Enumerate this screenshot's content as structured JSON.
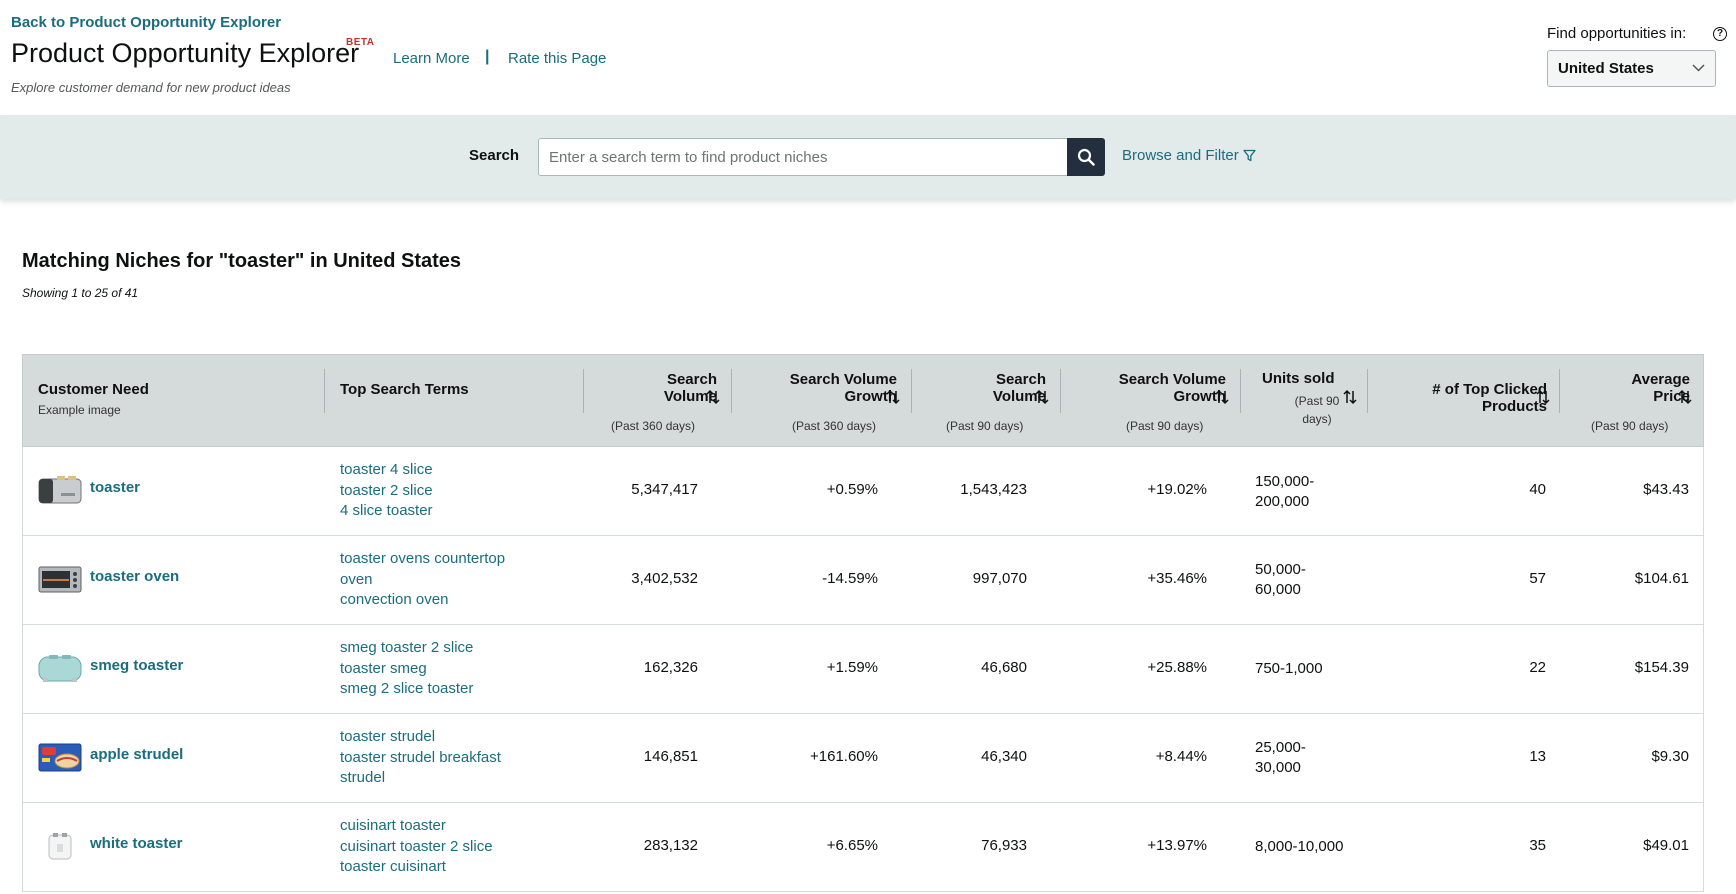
{
  "header": {
    "back_link": "Back to Product Opportunity Explorer",
    "title": "Product Opportunity Explorer",
    "beta_badge": "BETA",
    "learn_more": "Learn More",
    "separator": "|",
    "rate_page": "Rate this Page",
    "subtitle": "Explore customer demand for new product ideas",
    "find_label": "Find opportunities in:",
    "help_glyph": "?",
    "country": "United States"
  },
  "search": {
    "label": "Search",
    "placeholder": "Enter a search term to find product niches",
    "value": "",
    "browse_label": "Browse and Filter"
  },
  "results": {
    "title": "Matching Niches for \"toaster\" in United States",
    "count": "Showing 1 to 25 of 41"
  },
  "table": {
    "headers": {
      "customer_need": "Customer Need",
      "customer_need_sub": "Example image",
      "top_search_terms": "Top Search Terms",
      "sv360_l1": "Search",
      "sv360_l2": "Volume",
      "sv360_sub": "(Past 360 days)",
      "svg360_l1": "Search Volume",
      "svg360_l2": "Growth",
      "svg360_sub": "(Past 360 days)",
      "sv90_l1": "Search",
      "sv90_l2": "Volume",
      "sv90_sub": "(Past 90 days)",
      "svg90_l1": "Search Volume",
      "svg90_l2": "Growth",
      "svg90_sub": "(Past 90 days)",
      "units_l1": "Units sold",
      "units_sub1": "(Past 90",
      "units_sub2": "days)",
      "clicked_l1": "# of Top Clicked",
      "clicked_l2": "Products",
      "price_l1": "Average",
      "price_l2": "Price",
      "price_sub": "(Past 90 days)"
    },
    "rows": [
      {
        "need": "toaster",
        "image_icon": "toaster-image",
        "terms": [
          "toaster 4 slice",
          "toaster 2 slice",
          "4 slice toaster"
        ],
        "sv360": "5,347,417",
        "svg360": "+0.59%",
        "sv90": "1,543,423",
        "svg90": "+19.02%",
        "units_l1": "150,000-",
        "units_l2": "200,000",
        "clicked": "40",
        "price": "$43.43"
      },
      {
        "need": "toaster oven",
        "image_icon": "toaster-oven-image",
        "terms": [
          "toaster ovens countertop",
          "oven",
          "convection oven"
        ],
        "sv360": "3,402,532",
        "svg360": "-14.59%",
        "sv90": "997,070",
        "svg90": "+35.46%",
        "units_l1": "50,000-",
        "units_l2": "60,000",
        "clicked": "57",
        "price": "$104.61"
      },
      {
        "need": "smeg toaster",
        "image_icon": "smeg-toaster-image",
        "terms": [
          "smeg toaster 2 slice",
          "toaster smeg",
          "smeg 2 slice toaster"
        ],
        "sv360": "162,326",
        "svg360": "+1.59%",
        "sv90": "46,680",
        "svg90": "+25.88%",
        "units_l1": "750-1,000",
        "units_l2": "",
        "clicked": "22",
        "price": "$154.39"
      },
      {
        "need": "apple strudel",
        "image_icon": "apple-strudel-box-image",
        "terms": [
          "toaster strudel",
          "toaster strudel breakfast",
          "strudel"
        ],
        "sv360": "146,851",
        "svg360": "+161.60%",
        "sv90": "46,340",
        "svg90": "+8.44%",
        "units_l1": "25,000-",
        "units_l2": "30,000",
        "clicked": "13",
        "price": "$9.30"
      },
      {
        "need": "white toaster",
        "image_icon": "white-toaster-image",
        "terms": [
          "cuisinart toaster",
          "cuisinart toaster 2 slice",
          "toaster cuisinart"
        ],
        "sv360": "283,132",
        "svg360": "+6.65%",
        "sv90": "76,933",
        "svg90": "+13.97%",
        "units_l1": "8,000-10,000",
        "units_l2": "",
        "clicked": "35",
        "price": "$49.01"
      }
    ]
  },
  "colors": {
    "link": "#1a6d7e",
    "band": "#e3eaea",
    "table_header": "#d5dbdb",
    "search_button": "#232f3e",
    "beta": "#c7312b"
  }
}
